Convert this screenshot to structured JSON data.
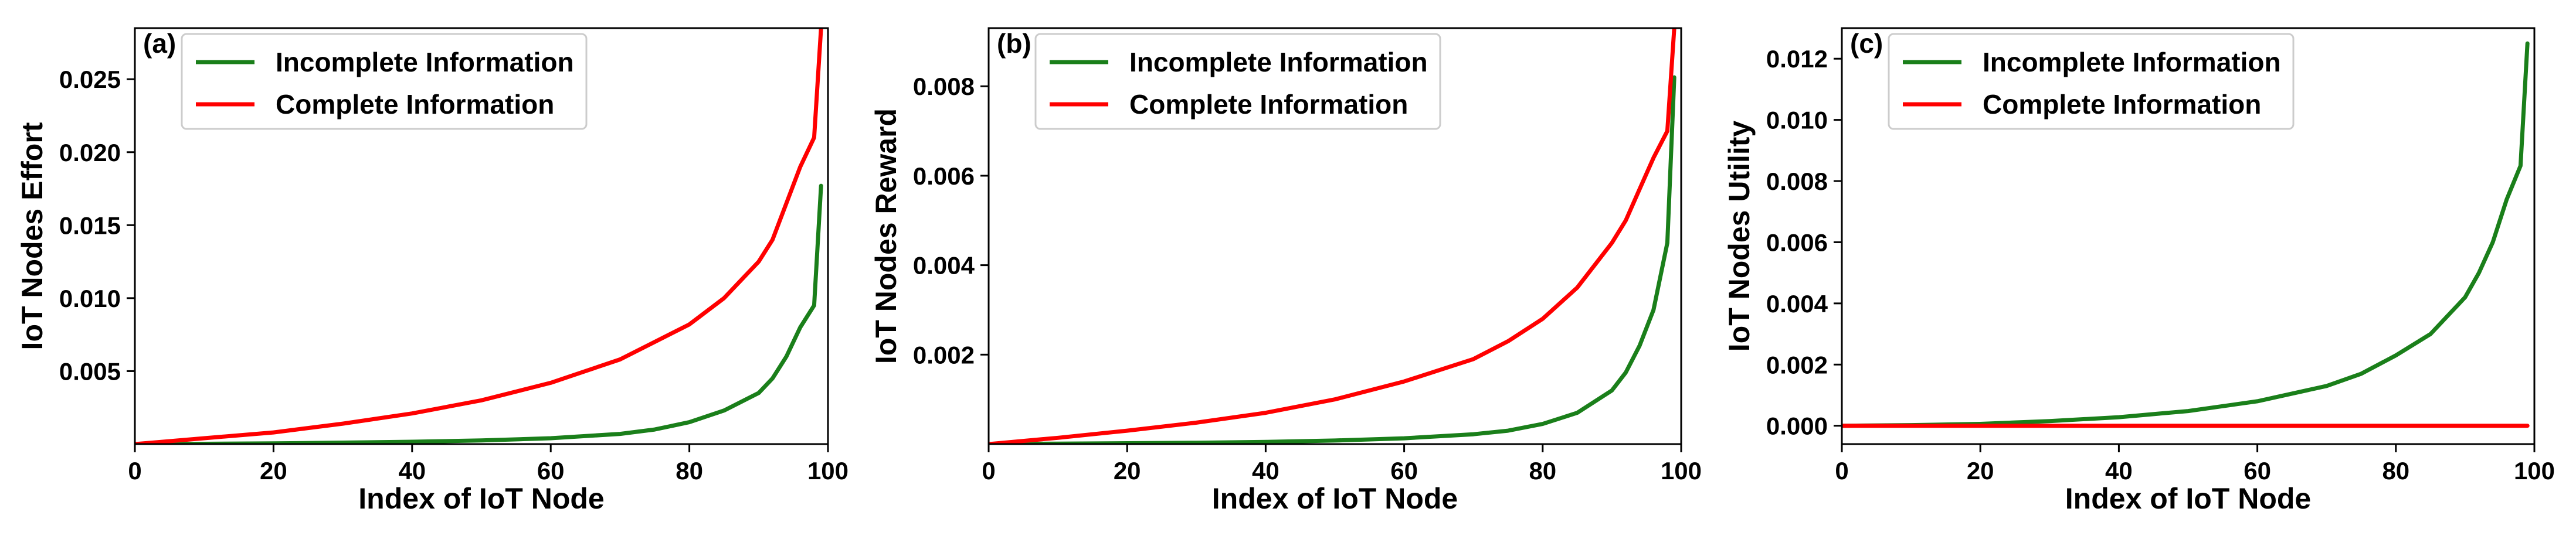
{
  "chart_data": [
    {
      "type": "line",
      "panel": "(a)",
      "xlabel": "Index of IoT Node",
      "ylabel": "IoT Nodes Effort",
      "xlim": [
        0,
        100
      ],
      "ylim": [
        0,
        0.0285
      ],
      "xticks": [
        0,
        20,
        40,
        60,
        80,
        100
      ],
      "xtick_labels": [
        "0",
        "20",
        "40",
        "60",
        "80",
        "100"
      ],
      "yticks": [
        0.005,
        0.01,
        0.015,
        0.02,
        0.025
      ],
      "ytick_labels": [
        "0.005",
        "0.010",
        "0.015",
        "0.020",
        "0.025"
      ],
      "legend_position": "top-left",
      "grid": false,
      "x": [
        0,
        10,
        20,
        30,
        40,
        50,
        60,
        70,
        75,
        80,
        85,
        90,
        92,
        94,
        96,
        98,
        99
      ],
      "series": [
        {
          "name": "Incomplete Information",
          "color": "#1a7f1a",
          "values": [
            0.0,
            2e-05,
            5e-05,
            0.0001,
            0.00016,
            0.00025,
            0.0004,
            0.0007,
            0.001,
            0.0015,
            0.0023,
            0.0035,
            0.0045,
            0.006,
            0.008,
            0.0095,
            0.0177
          ]
        },
        {
          "name": "Complete Information",
          "color": "#ff0000",
          "values": [
            0.0,
            0.0004,
            0.0008,
            0.0014,
            0.0021,
            0.003,
            0.0042,
            0.0058,
            0.007,
            0.0082,
            0.01,
            0.0125,
            0.014,
            0.0165,
            0.019,
            0.021,
            0.0285
          ]
        }
      ]
    },
    {
      "type": "line",
      "panel": "(b)",
      "xlabel": "Index of IoT Node",
      "ylabel": "IoT Nodes Reward",
      "xlim": [
        0,
        100
      ],
      "ylim": [
        0,
        0.0093
      ],
      "xticks": [
        0,
        20,
        40,
        60,
        80,
        100
      ],
      "xtick_labels": [
        "0",
        "20",
        "40",
        "60",
        "80",
        "100"
      ],
      "yticks": [
        0.002,
        0.004,
        0.006,
        0.008
      ],
      "ytick_labels": [
        "0.002",
        "0.004",
        "0.006",
        "0.008"
      ],
      "legend_position": "top-left",
      "grid": false,
      "x": [
        0,
        10,
        20,
        30,
        40,
        50,
        60,
        70,
        75,
        80,
        85,
        90,
        92,
        94,
        96,
        98,
        99
      ],
      "series": [
        {
          "name": "Incomplete Information",
          "color": "#1a7f1a",
          "values": [
            0.0,
            1e-05,
            2e-05,
            3e-05,
            5e-05,
            8e-05,
            0.00013,
            0.00022,
            0.0003,
            0.00045,
            0.0007,
            0.0012,
            0.0016,
            0.0022,
            0.003,
            0.0045,
            0.0082
          ]
        },
        {
          "name": "Complete Information",
          "color": "#ff0000",
          "values": [
            0.0,
            0.00014,
            0.0003,
            0.00048,
            0.0007,
            0.001,
            0.0014,
            0.0019,
            0.0023,
            0.0028,
            0.0035,
            0.0045,
            0.005,
            0.0057,
            0.0064,
            0.007,
            0.0093
          ]
        }
      ]
    },
    {
      "type": "line",
      "panel": "(c)",
      "xlabel": "Index of IoT Node",
      "ylabel": "IoT Nodes Utility",
      "xlim": [
        0,
        100
      ],
      "ylim": [
        -0.0006,
        0.013
      ],
      "xticks": [
        0,
        20,
        40,
        60,
        80,
        100
      ],
      "xtick_labels": [
        "0",
        "20",
        "40",
        "60",
        "80",
        "100"
      ],
      "yticks": [
        0.0,
        0.002,
        0.004,
        0.006,
        0.008,
        0.01,
        0.012
      ],
      "ytick_labels": [
        "0.000",
        "0.002",
        "0.004",
        "0.006",
        "0.008",
        "0.010",
        "0.012"
      ],
      "legend_position": "top-left",
      "grid": false,
      "x": [
        0,
        10,
        20,
        30,
        40,
        50,
        60,
        70,
        75,
        80,
        85,
        90,
        92,
        94,
        96,
        98,
        99
      ],
      "series": [
        {
          "name": "Incomplete Information",
          "color": "#1a7f1a",
          "values": [
            0.0,
            2e-05,
            6e-05,
            0.00015,
            0.00028,
            0.00048,
            0.0008,
            0.0013,
            0.0017,
            0.0023,
            0.003,
            0.0042,
            0.005,
            0.006,
            0.0074,
            0.0085,
            0.0125
          ]
        },
        {
          "name": "Complete Information",
          "color": "#ff0000",
          "values": [
            0.0,
            0.0,
            0.0,
            0.0,
            0.0,
            0.0,
            0.0,
            0.0,
            0.0,
            0.0,
            0.0,
            0.0,
            0.0,
            0.0,
            0.0,
            0.0,
            0.0
          ]
        }
      ]
    }
  ]
}
